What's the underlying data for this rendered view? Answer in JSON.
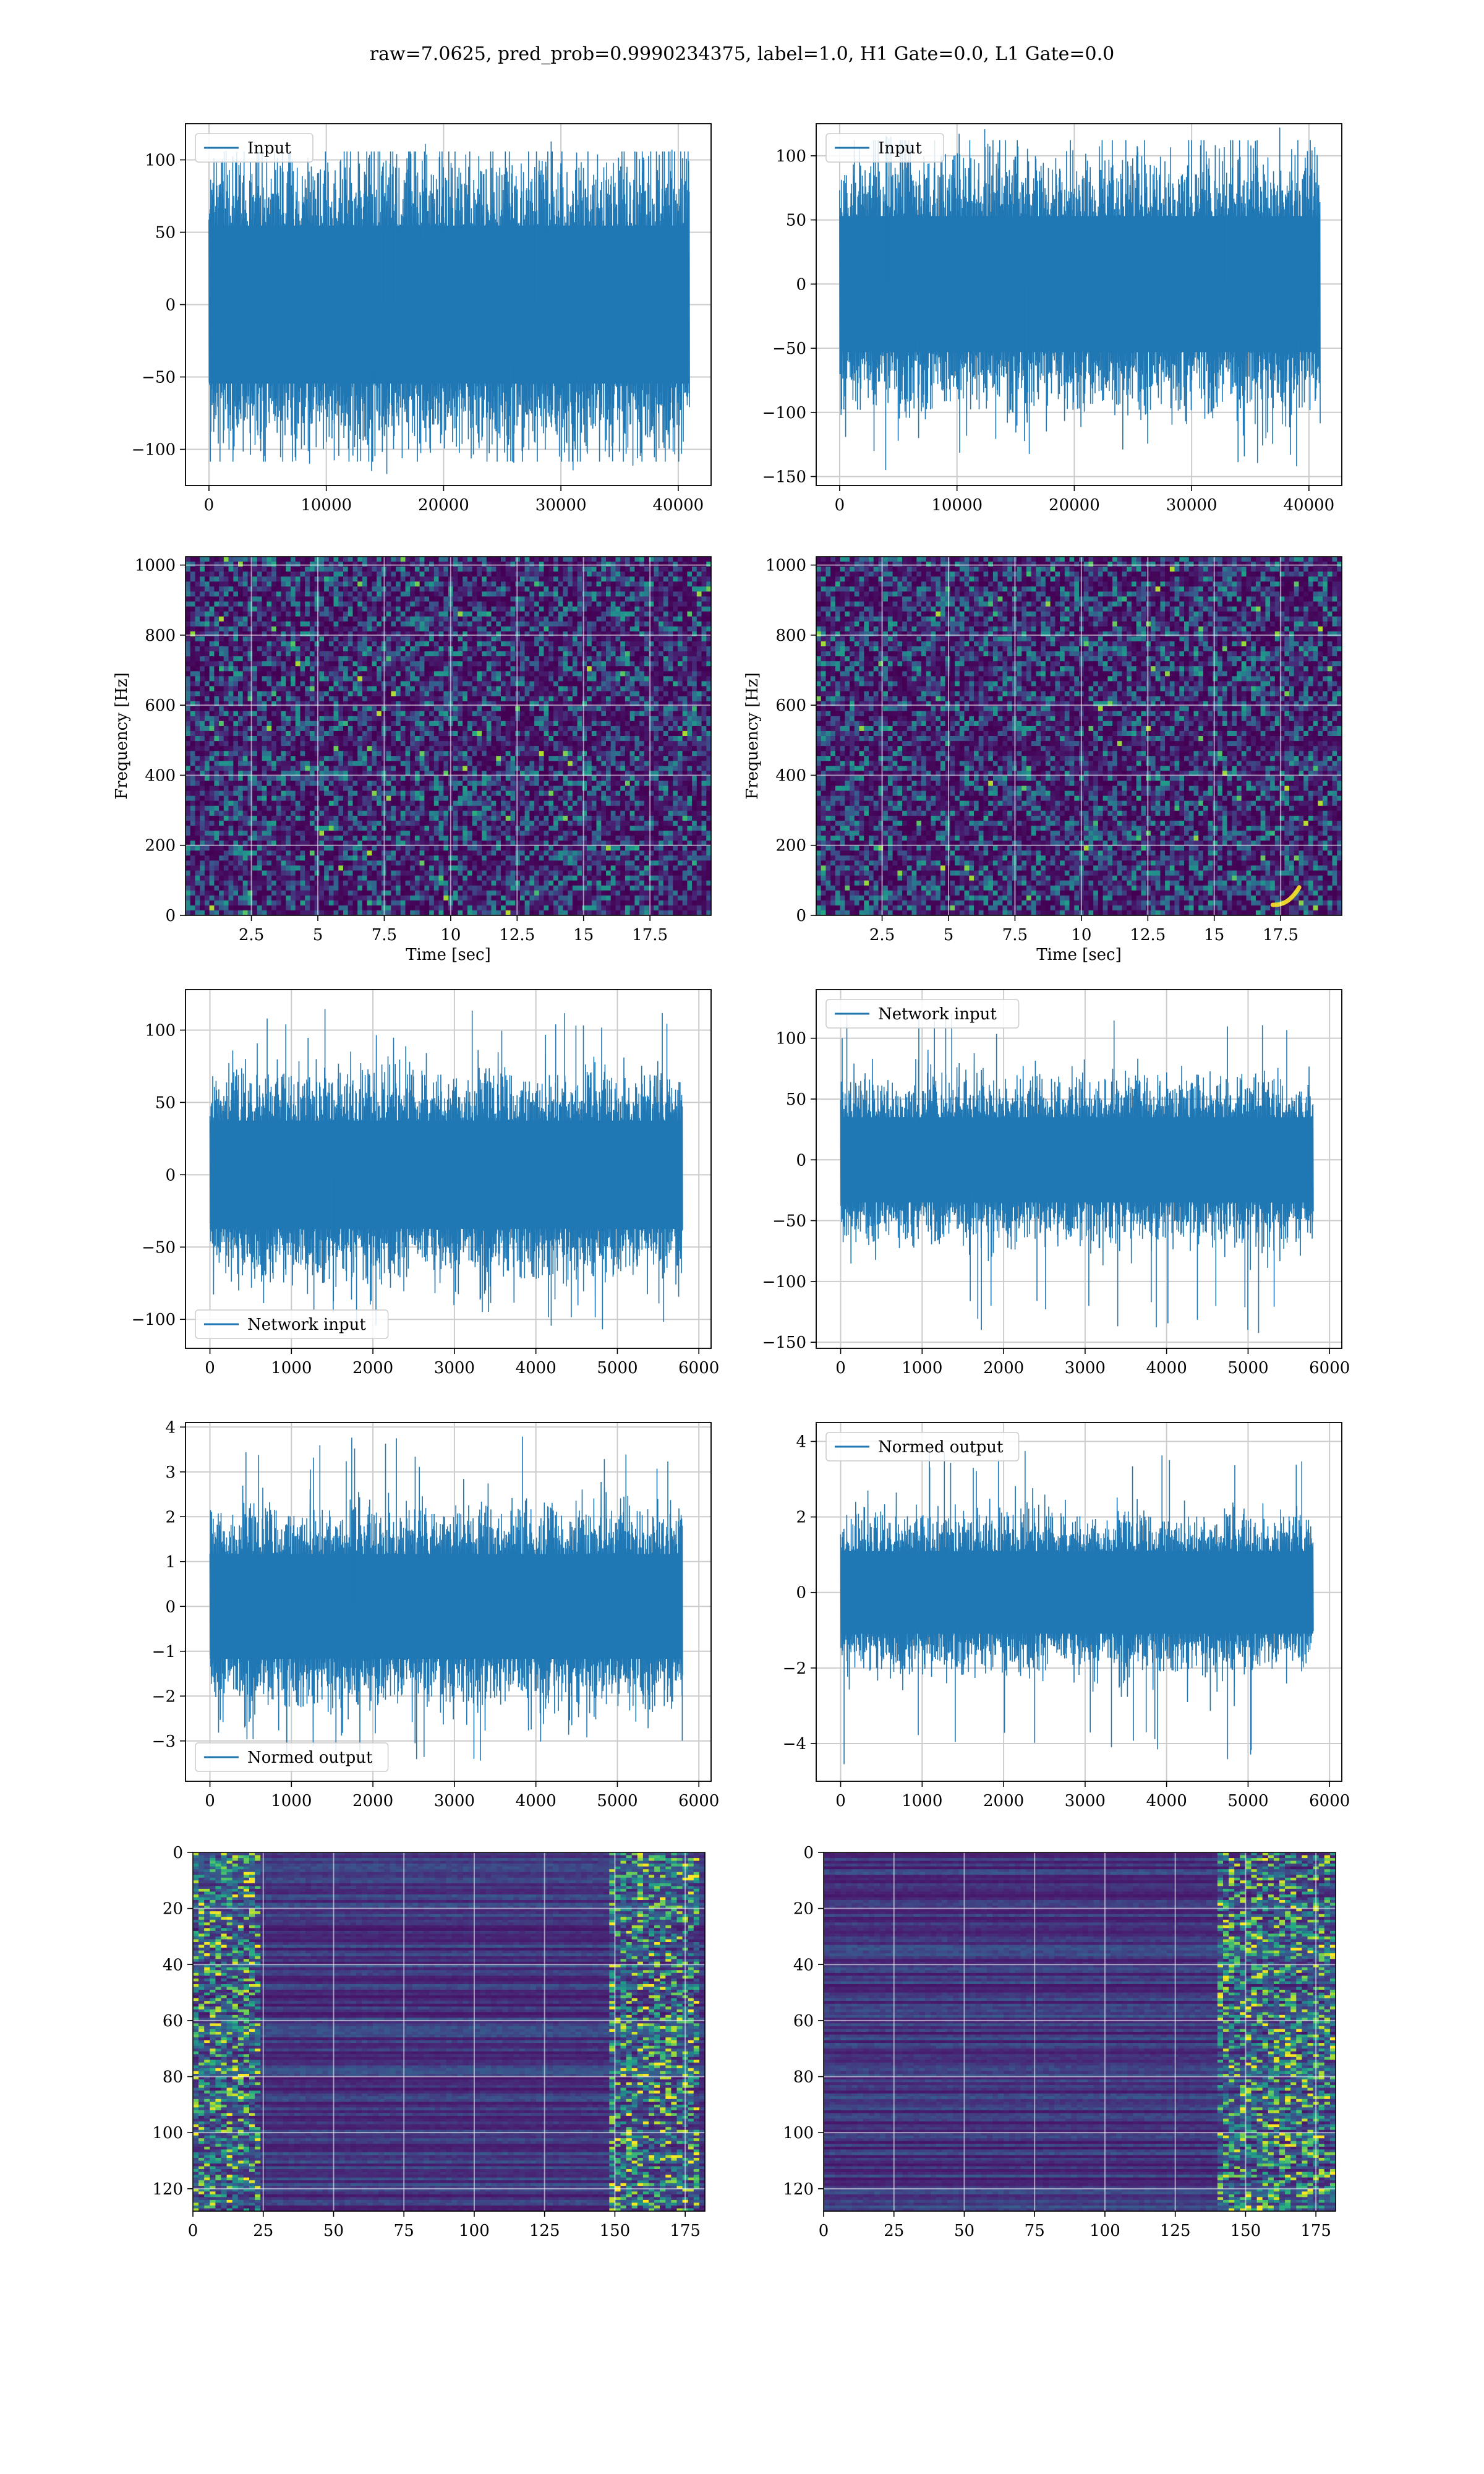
{
  "figure": {
    "title": "raw=7.0625, pred_prob=0.9990234375, label=1.0, H1 Gate=0.0, L1 Gate=0.0"
  },
  "colors": {
    "series": "#1f77b4",
    "grid": "#cccccc",
    "viridis_low": "#440154",
    "viridis_mid": "#21918c",
    "viridis_high": "#fde725"
  },
  "chart_data": [
    {
      "id": "h1-input",
      "type": "line",
      "legend": "Input",
      "legend_loc": "upper-left",
      "xlim": [
        -2000,
        42800
      ],
      "ylim": [
        -125,
        125
      ],
      "xticks": [
        0,
        10000,
        20000,
        30000,
        40000
      ],
      "yticks": [
        -100,
        -50,
        0,
        50,
        100
      ],
      "x_range": [
        0,
        40960
      ],
      "core_amplitude": 70,
      "spike_max": 115,
      "spike_min": -118,
      "xlabel": "",
      "ylabel": "",
      "grid": true
    },
    {
      "id": "l1-input",
      "type": "line",
      "legend": "Input",
      "legend_loc": "upper-left",
      "xlim": [
        -2000,
        42800
      ],
      "ylim": [
        -157,
        125
      ],
      "xticks": [
        0,
        10000,
        20000,
        30000,
        40000
      ],
      "yticks": [
        -150,
        -100,
        -50,
        0,
        50,
        100
      ],
      "x_range": [
        0,
        40960
      ],
      "core_amplitude": 68,
      "spike_max": 122,
      "spike_min": -145,
      "xlabel": "",
      "ylabel": "",
      "grid": true
    },
    {
      "id": "h1-spectrogram",
      "type": "heatmap",
      "xlim": [
        0.02,
        19.8
      ],
      "ylim": [
        0,
        1024
      ],
      "xticks": [
        2.5,
        5.0,
        7.5,
        10.0,
        12.5,
        15.0,
        17.5
      ],
      "yticks": [
        0,
        200,
        400,
        600,
        800,
        1000
      ],
      "xlabel": "Time [sec]",
      "ylabel": "Frequency [Hz]",
      "grid": true
    },
    {
      "id": "l1-spectrogram",
      "type": "heatmap",
      "xlim": [
        0.02,
        19.8
      ],
      "ylim": [
        0,
        1024
      ],
      "xticks": [
        2.5,
        5.0,
        7.5,
        10.0,
        12.5,
        15.0,
        17.5
      ],
      "yticks": [
        0,
        200,
        400,
        600,
        800,
        1000
      ],
      "xlabel": "Time [sec]",
      "ylabel": "Frequency [Hz]",
      "grid": true,
      "chirp": {
        "t_start": 17.2,
        "t_end": 18.2,
        "f_start": 30,
        "f_end": 80
      }
    },
    {
      "id": "h1-network-input",
      "type": "line",
      "legend": "Network input",
      "legend_loc": "lower-left",
      "xlim": [
        -300,
        6150
      ],
      "ylim": [
        -120,
        128
      ],
      "xticks": [
        0,
        1000,
        2000,
        3000,
        4000,
        5000,
        6000
      ],
      "yticks": [
        -100,
        -50,
        0,
        50,
        100
      ],
      "x_range": [
        0,
        5800
      ],
      "core_amplitude": 48,
      "spike_max": 118,
      "spike_min": -107,
      "xlabel": "",
      "ylabel": "",
      "grid": true
    },
    {
      "id": "l1-network-input",
      "type": "line",
      "legend": "Network input",
      "legend_loc": "upper-left",
      "xlim": [
        -300,
        6150
      ],
      "ylim": [
        -155,
        140
      ],
      "xticks": [
        0,
        1000,
        2000,
        3000,
        4000,
        5000,
        6000
      ],
      "yticks": [
        -150,
        -100,
        -50,
        0,
        50,
        100
      ],
      "x_range": [
        0,
        5800
      ],
      "core_amplitude": 45,
      "spike_max": 125,
      "spike_min": -143,
      "xlabel": "",
      "ylabel": "",
      "grid": true
    },
    {
      "id": "h1-normed-output",
      "type": "line",
      "legend": "Normed output",
      "legend_loc": "lower-left",
      "xlim": [
        -300,
        6150
      ],
      "ylim": [
        -3.9,
        4.1
      ],
      "xticks": [
        0,
        1000,
        2000,
        3000,
        4000,
        5000,
        6000
      ],
      "yticks": [
        -3,
        -2,
        -1,
        0,
        1,
        2,
        3,
        4
      ],
      "x_range": [
        0,
        5800
      ],
      "core_amplitude": 1.5,
      "spike_max": 3.8,
      "spike_min": -3.5,
      "xlabel": "",
      "ylabel": "",
      "grid": true
    },
    {
      "id": "l1-normed-output",
      "type": "line",
      "legend": "Normed output",
      "legend_loc": "upper-left",
      "xlim": [
        -300,
        6150
      ],
      "ylim": [
        -5.0,
        4.5
      ],
      "xticks": [
        0,
        1000,
        2000,
        3000,
        4000,
        5000,
        6000
      ],
      "yticks": [
        -4,
        -2,
        0,
        2,
        4
      ],
      "x_range": [
        0,
        5800
      ],
      "core_amplitude": 1.4,
      "spike_max": 4.0,
      "spike_min": -4.6,
      "xlabel": "",
      "ylabel": "",
      "grid": true
    },
    {
      "id": "h1-feature-map",
      "type": "heatmap",
      "xlim": [
        0,
        182
      ],
      "ylim": [
        128,
        0
      ],
      "xticks": [
        0,
        25,
        50,
        75,
        100,
        125,
        150,
        175
      ],
      "yticks": [
        0,
        20,
        40,
        60,
        80,
        100,
        120
      ],
      "rows": 128,
      "cols": 182,
      "active_cols": [
        [
          0,
          22
        ],
        [
          148,
          178
        ]
      ],
      "xlabel": "",
      "ylabel": "",
      "grid": true
    },
    {
      "id": "l1-feature-map",
      "type": "heatmap",
      "xlim": [
        0,
        182
      ],
      "ylim": [
        128,
        0
      ],
      "xticks": [
        0,
        25,
        50,
        75,
        100,
        125,
        150,
        175
      ],
      "yticks": [
        0,
        20,
        40,
        60,
        80,
        100,
        120
      ],
      "rows": 128,
      "cols": 182,
      "active_cols": [
        [
          140,
          182
        ]
      ],
      "xlabel": "",
      "ylabel": "",
      "grid": true
    }
  ]
}
